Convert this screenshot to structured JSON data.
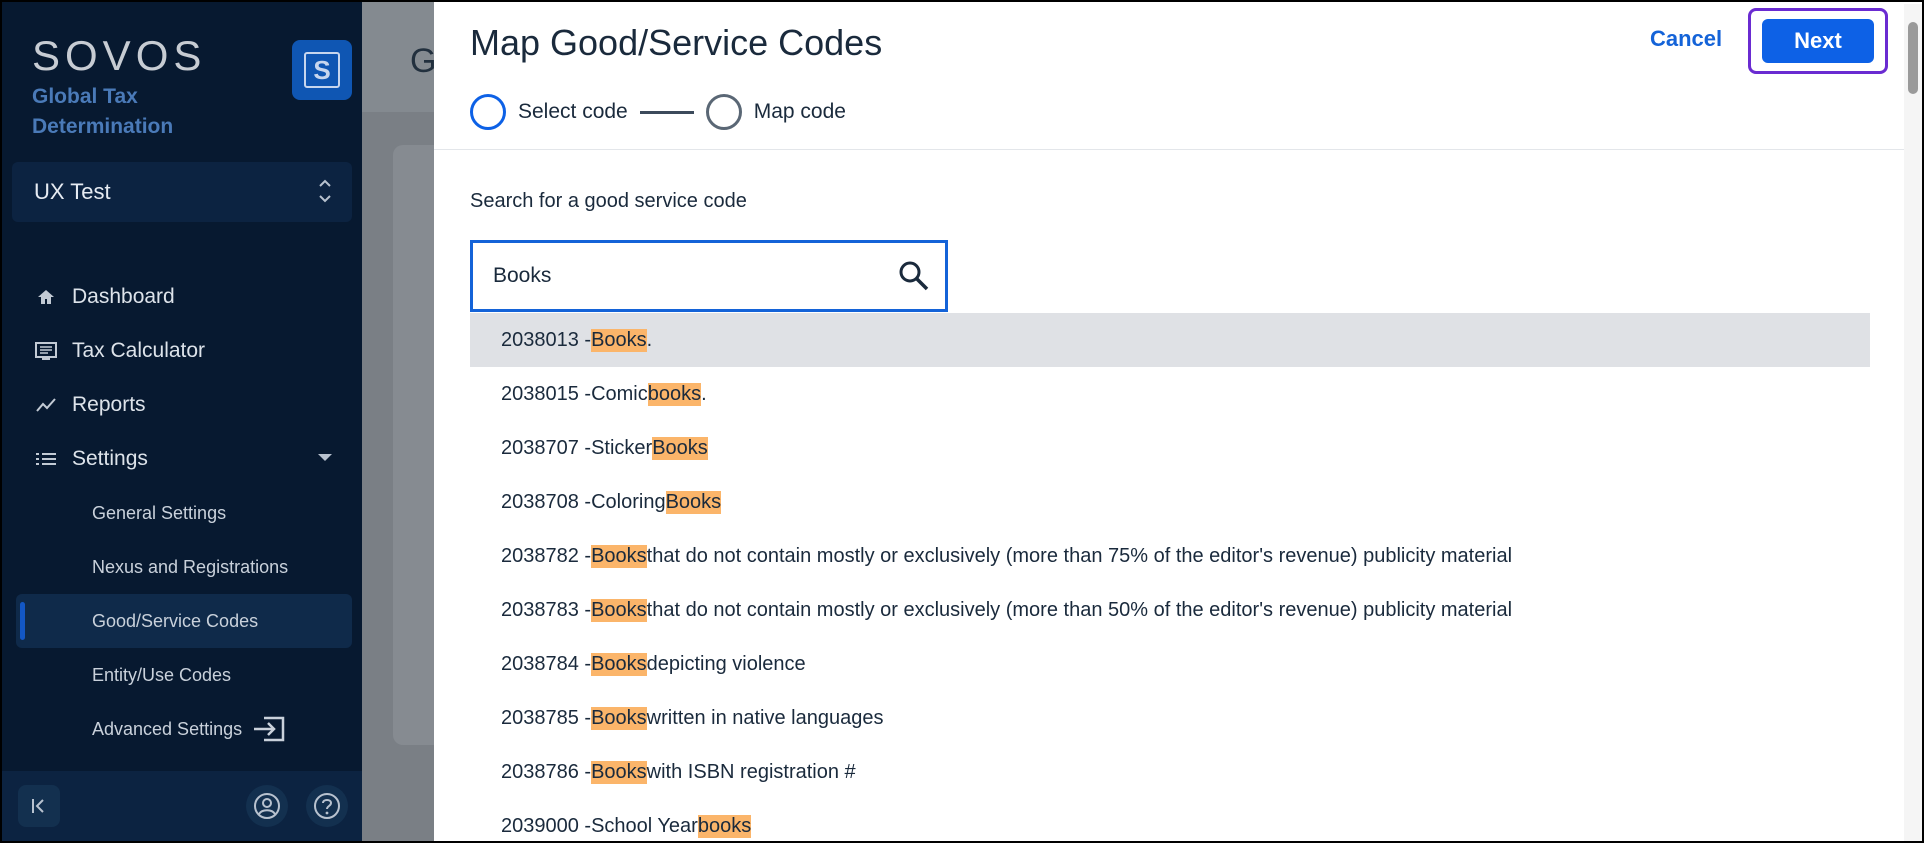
{
  "sidebar": {
    "brand_logo": "SOVOS",
    "brand_sub1": "Global Tax",
    "brand_sub2": "Determination",
    "brand_badge": "S",
    "tenant": "UX Test",
    "nav": [
      {
        "label": "Dashboard",
        "icon": "home-icon"
      },
      {
        "label": "Tax Calculator",
        "icon": "calculator-icon"
      },
      {
        "label": "Reports",
        "icon": "chart-line-icon"
      },
      {
        "label": "Settings",
        "icon": "list-icon"
      }
    ],
    "settings_items": [
      {
        "label": "General Settings"
      },
      {
        "label": "Nexus and Registrations"
      },
      {
        "label": "Good/Service Codes"
      },
      {
        "label": "Entity/Use Codes"
      },
      {
        "label": "Advanced Settings"
      }
    ]
  },
  "background": {
    "title_letter": "G"
  },
  "modal": {
    "title": "Map Good/Service Codes",
    "cancel_label": "Cancel",
    "next_label": "Next",
    "steps": [
      {
        "label": "Select code"
      },
      {
        "label": "Map code"
      }
    ],
    "search_label": "Search for a good service code",
    "search_value": "Books",
    "results": [
      {
        "prefix": "2038013 - ",
        "before": "",
        "match": "Books",
        "after": "."
      },
      {
        "prefix": "2038015 - ",
        "before": "Comic ",
        "match": "books",
        "after": "."
      },
      {
        "prefix": "2038707 - ",
        "before": "Sticker ",
        "match": "Books",
        "after": ""
      },
      {
        "prefix": "2038708 - ",
        "before": "Coloring ",
        "match": "Books",
        "after": ""
      },
      {
        "prefix": "2038782 - ",
        "before": "",
        "match": "Books",
        "after": " that do not contain mostly or exclusively (more than 75% of the editor's revenue) publicity material"
      },
      {
        "prefix": "2038783 - ",
        "before": "",
        "match": "Books",
        "after": " that do not contain mostly or exclusively (more than 50% of the editor's revenue) publicity material"
      },
      {
        "prefix": "2038784 - ",
        "before": "",
        "match": "Books",
        "after": " depicting violence"
      },
      {
        "prefix": "2038785 - ",
        "before": "",
        "match": "Books",
        "after": " written in native languages"
      },
      {
        "prefix": "2038786 - ",
        "before": "",
        "match": "Books",
        "after": " with ISBN registration #"
      },
      {
        "prefix": "2039000 - ",
        "before": "School Year",
        "match": "books",
        "after": ""
      }
    ]
  },
  "colors": {
    "accent": "#0d61e6",
    "highlight": "#fbb56a",
    "sidebar_bg": "#071930"
  }
}
